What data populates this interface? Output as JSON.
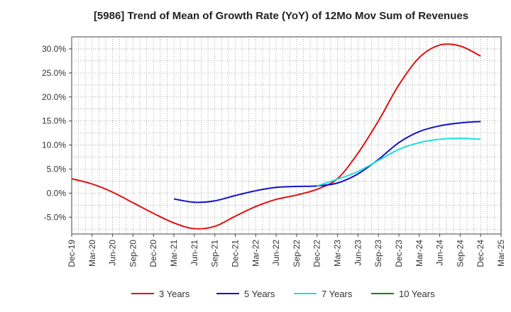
{
  "chart_data": {
    "type": "line",
    "title": "[5986]  Trend of Mean of Growth Rate (YoY) of 12Mo Mov Sum of Revenues",
    "xlabel": "",
    "ylabel": "",
    "ylim": [
      -8.5,
      32.5
    ],
    "yticks": [
      -5,
      0,
      5,
      10,
      15,
      20,
      25,
      30
    ],
    "ytick_labels": [
      "-5.0%",
      "0.0%",
      "5.0%",
      "10.0%",
      "15.0%",
      "20.0%",
      "25.0%",
      "30.0%"
    ],
    "categories": [
      "Dec-19",
      "Mar-20",
      "Jun-20",
      "Sep-20",
      "Dec-20",
      "Mar-21",
      "Jun-21",
      "Sep-21",
      "Dec-21",
      "Mar-22",
      "Jun-22",
      "Sep-22",
      "Dec-22",
      "Mar-23",
      "Jun-23",
      "Sep-23",
      "Dec-23",
      "Mar-24",
      "Jun-24",
      "Sep-24",
      "Dec-24",
      "Mar-25"
    ],
    "series": [
      {
        "name": "3 Years",
        "color": "#dd1111",
        "values": [
          3.0,
          1.9,
          0.2,
          -2.0,
          -4.2,
          -6.2,
          -7.4,
          -6.9,
          -4.8,
          -2.8,
          -1.3,
          -0.4,
          0.8,
          3.0,
          8.3,
          15.0,
          22.5,
          28.2,
          30.8,
          30.6,
          28.5,
          null
        ]
      },
      {
        "name": "5 Years",
        "color": "#1111cc",
        "values": [
          null,
          null,
          null,
          null,
          null,
          -1.2,
          -1.9,
          -1.6,
          -0.5,
          0.5,
          1.2,
          1.4,
          1.5,
          2.1,
          4.0,
          7.0,
          10.5,
          12.8,
          14.0,
          14.6,
          14.9,
          null
        ]
      },
      {
        "name": "7 Years",
        "color": "#22dddd",
        "values": [
          null,
          null,
          null,
          null,
          null,
          null,
          null,
          null,
          null,
          null,
          null,
          null,
          1.5,
          2.9,
          4.5,
          6.8,
          9.1,
          10.5,
          11.2,
          11.4,
          11.2,
          null
        ]
      },
      {
        "name": "10 Years",
        "color": "#118811",
        "values": [
          null,
          null,
          null,
          null,
          null,
          null,
          null,
          null,
          null,
          null,
          null,
          null,
          null,
          null,
          null,
          null,
          null,
          null,
          null,
          null,
          null,
          null
        ]
      }
    ],
    "grid": true,
    "legend_position": "bottom"
  }
}
